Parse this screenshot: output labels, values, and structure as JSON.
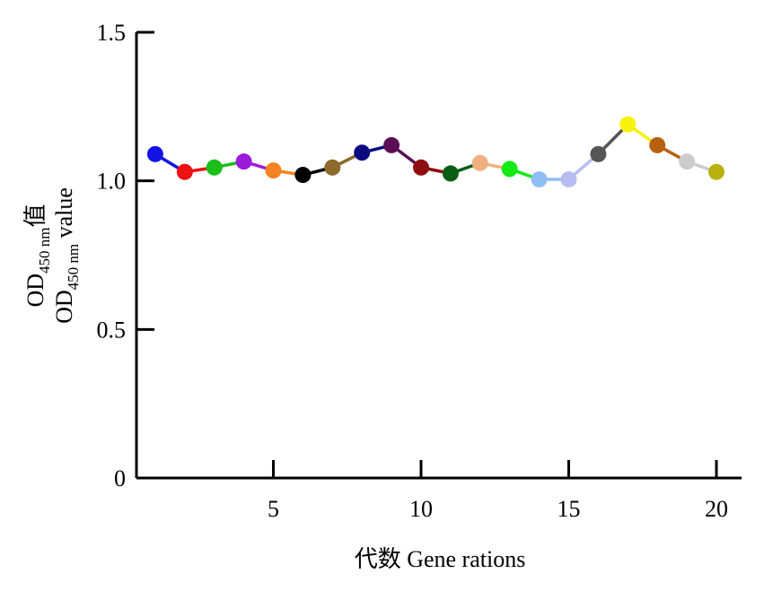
{
  "chart_data": {
    "type": "line",
    "title": "",
    "xlabel": "代数 Gene rations",
    "ylabel_line1": {
      "base": "OD",
      "sub": "450 nm",
      "suffix": "值"
    },
    "ylabel_line2": {
      "base": "OD",
      "sub": "450 nm",
      "suffix": " value"
    },
    "xlim": [
      0,
      20
    ],
    "ylim": [
      0,
      1.5
    ],
    "xticks": [
      5,
      10,
      15,
      20
    ],
    "yticks": [
      0,
      0.5,
      1.0,
      1.5
    ],
    "ytick_labels": [
      "0",
      "0.5",
      "1.0",
      "1.5"
    ],
    "grid": false,
    "x": [
      1,
      2,
      3,
      4,
      5,
      6,
      7,
      8,
      9,
      10,
      11,
      12,
      13,
      14,
      15,
      16,
      17,
      18,
      19,
      20
    ],
    "values": [
      1.09,
      1.03,
      1.045,
      1.065,
      1.035,
      1.02,
      1.045,
      1.095,
      1.12,
      1.045,
      1.025,
      1.06,
      1.04,
      1.005,
      1.005,
      1.09,
      1.19,
      1.12,
      1.065,
      1.03
    ],
    "point_colors": [
      "#1313e6",
      "#ee1111",
      "#1bbf1b",
      "#9b1bd8",
      "#f58220",
      "#000000",
      "#8b6a2a",
      "#0b0b80",
      "#5a0f55",
      "#8e0d10",
      "#0a5e14",
      "#f0b07e",
      "#14ea14",
      "#8fbef2",
      "#b7bdf2",
      "#555555",
      "#f6f20a",
      "#b8600f",
      "#cccccc",
      "#b8b20f"
    ]
  }
}
